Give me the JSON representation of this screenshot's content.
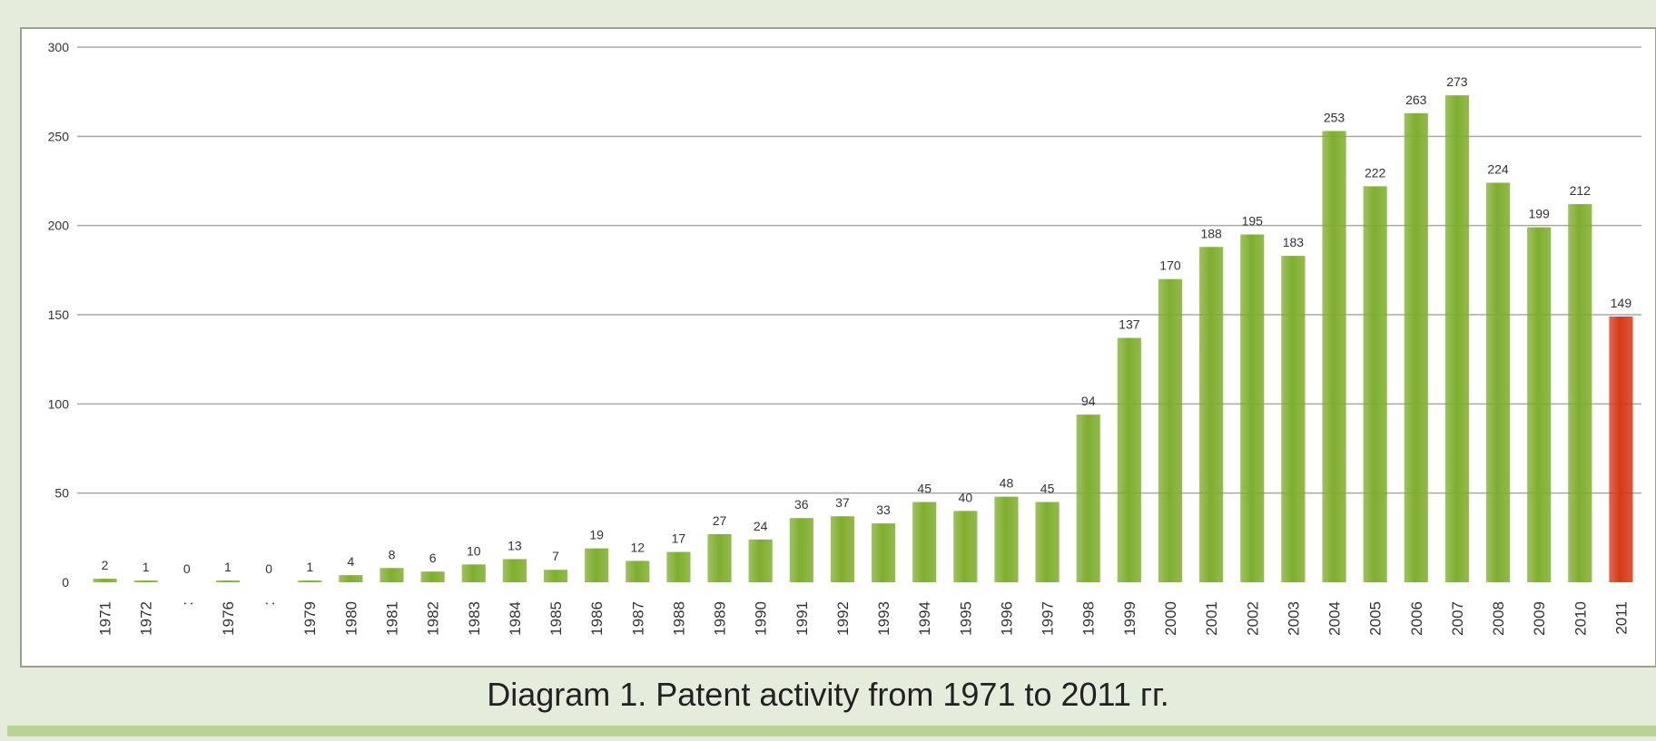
{
  "chart_data": {
    "type": "bar",
    "title": "Diagram 1. Patent activity from 1971 to 2011 гг.",
    "categories": [
      "1971",
      "1972",
      ":",
      "1976",
      ":",
      "1979",
      "1980",
      "1981",
      "1982",
      "1983",
      "1984",
      "1985",
      "1986",
      "1987",
      "1988",
      "1989",
      "1990",
      "1991",
      "1992",
      "1993",
      "1994",
      "1995",
      "1996",
      "1997",
      "1998",
      "1999",
      "2000",
      "2001",
      "2002",
      "2003",
      "2004",
      "2005",
      "2006",
      "2007",
      "2008",
      "2009",
      "2010",
      "2011"
    ],
    "values": [
      2,
      1,
      0,
      1,
      0,
      1,
      4,
      8,
      6,
      10,
      13,
      7,
      19,
      12,
      17,
      27,
      24,
      36,
      37,
      33,
      45,
      40,
      48,
      45,
      94,
      137,
      170,
      188,
      195,
      183,
      253,
      222,
      263,
      273,
      224,
      199,
      212,
      149
    ],
    "colors": [
      "#7fae2e",
      "#7fae2e",
      "#7fae2e",
      "#7fae2e",
      "#7fae2e",
      "#7fae2e",
      "#7fae2e",
      "#7fae2e",
      "#7fae2e",
      "#7fae2e",
      "#7fae2e",
      "#7fae2e",
      "#7fae2e",
      "#7fae2e",
      "#7fae2e",
      "#7fae2e",
      "#7fae2e",
      "#7fae2e",
      "#7fae2e",
      "#7fae2e",
      "#7fae2e",
      "#7fae2e",
      "#7fae2e",
      "#7fae2e",
      "#7fae2e",
      "#7fae2e",
      "#7fae2e",
      "#7fae2e",
      "#7fae2e",
      "#7fae2e",
      "#7fae2e",
      "#7fae2e",
      "#7fae2e",
      "#7fae2e",
      "#7fae2e",
      "#7fae2e",
      "#7fae2e",
      "#d63a16"
    ],
    "ylim": [
      0,
      300
    ],
    "yticks": [
      0,
      50,
      100,
      150,
      200,
      250,
      300
    ],
    "grid": true
  }
}
